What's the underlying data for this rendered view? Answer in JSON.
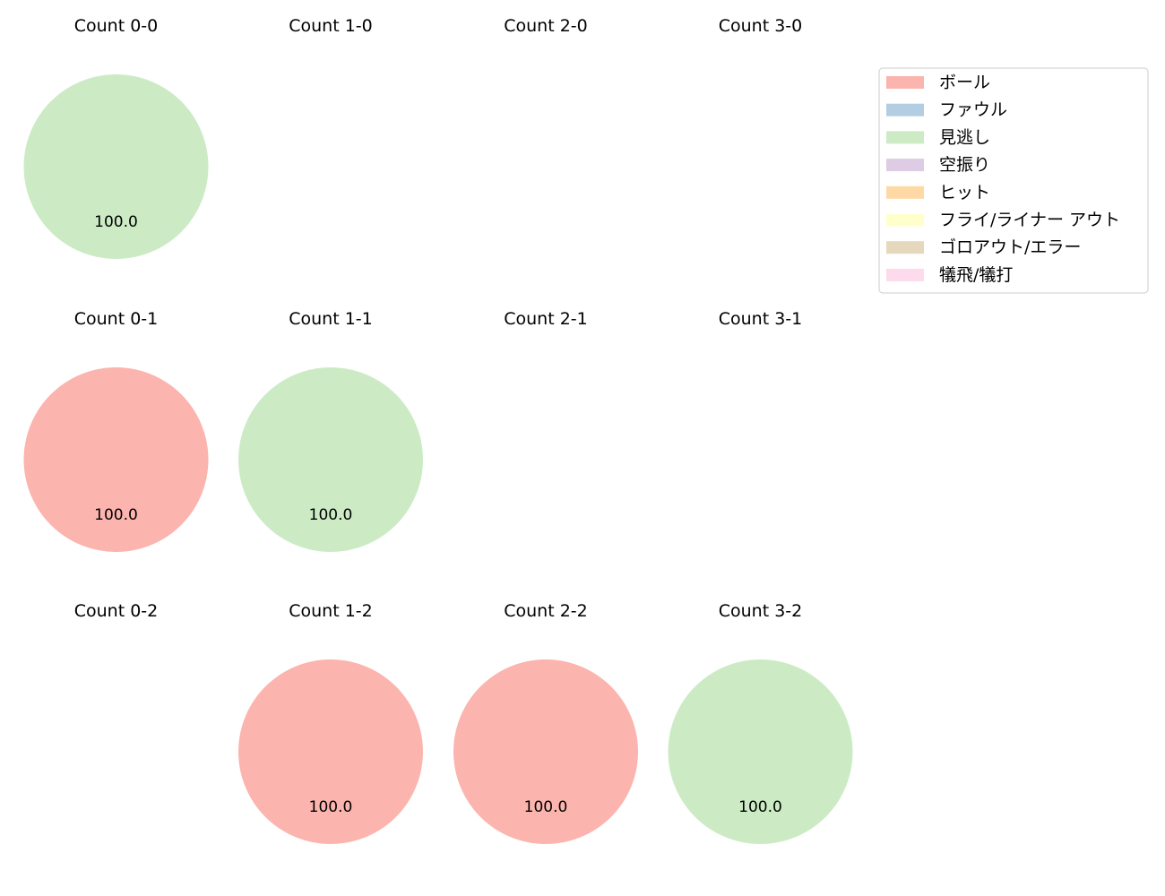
{
  "chart_data": {
    "type": "pie",
    "legend_placement": "top-right",
    "legend": [
      {
        "label": "ボール",
        "color": "#fbb4ae"
      },
      {
        "label": "ファウル",
        "color": "#b3cde3"
      },
      {
        "label": "見逃し",
        "color": "#ccebc5"
      },
      {
        "label": "空振り",
        "color": "#decbe4"
      },
      {
        "label": "ヒット",
        "color": "#fed9a6"
      },
      {
        "label": "フライ/ライナー アウト",
        "color": "#ffffcc"
      },
      {
        "label": "ゴロアウト/エラー",
        "color": "#e5d8bd"
      },
      {
        "label": "犠飛/犠打",
        "color": "#fddaec"
      }
    ],
    "panels": [
      {
        "title": "Count 0-0",
        "slices": [
          {
            "category": "見逃し",
            "value": 100.0,
            "label": "100.0"
          }
        ]
      },
      {
        "title": "Count 1-0",
        "slices": []
      },
      {
        "title": "Count 2-0",
        "slices": []
      },
      {
        "title": "Count 3-0",
        "slices": []
      },
      {
        "title": "Count 0-1",
        "slices": [
          {
            "category": "ボール",
            "value": 100.0,
            "label": "100.0"
          }
        ]
      },
      {
        "title": "Count 1-1",
        "slices": [
          {
            "category": "見逃し",
            "value": 100.0,
            "label": "100.0"
          }
        ]
      },
      {
        "title": "Count 2-1",
        "slices": []
      },
      {
        "title": "Count 3-1",
        "slices": []
      },
      {
        "title": "Count 0-2",
        "slices": []
      },
      {
        "title": "Count 1-2",
        "slices": [
          {
            "category": "ボール",
            "value": 100.0,
            "label": "100.0"
          }
        ]
      },
      {
        "title": "Count 2-2",
        "slices": [
          {
            "category": "ボール",
            "value": 100.0,
            "label": "100.0"
          }
        ]
      },
      {
        "title": "Count 3-2",
        "slices": [
          {
            "category": "見逃し",
            "value": 100.0,
            "label": "100.0"
          }
        ]
      }
    ]
  }
}
